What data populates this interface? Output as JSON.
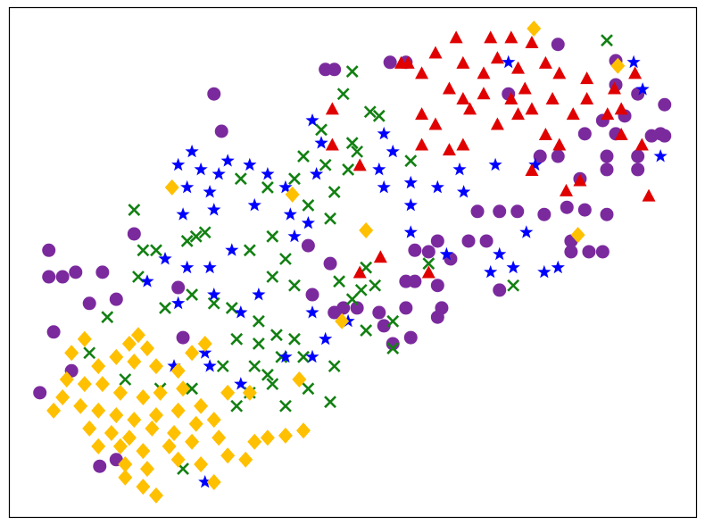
{
  "chart_data": {
    "type": "scatter",
    "title": "",
    "xlabel": "",
    "ylabel": "",
    "xlim": [
      0,
      100
    ],
    "ylim": [
      0,
      100
    ],
    "axes_ticks": false,
    "grid": false,
    "legend": "none",
    "series": [
      {
        "marker": "circle",
        "color": "#7b2a9e",
        "points": [
          [
            29.8,
            83.0
          ],
          [
            30.9,
            75.7
          ],
          [
            46.0,
            87.8
          ],
          [
            47.3,
            87.8
          ],
          [
            55.4,
            89.2
          ],
          [
            57.7,
            89.2
          ],
          [
            79.8,
            92.7
          ],
          [
            88.2,
            89.5
          ],
          [
            72.6,
            83.0
          ],
          [
            88.2,
            84.8
          ],
          [
            91.4,
            83.0
          ],
          [
            95.3,
            80.9
          ],
          [
            89.5,
            78.7
          ],
          [
            86.3,
            77.8
          ],
          [
            83.7,
            75.2
          ],
          [
            88.2,
            75.2
          ],
          [
            93.4,
            74.8
          ],
          [
            95.3,
            74.8
          ],
          [
            77.2,
            70.8
          ],
          [
            79.8,
            70.8
          ],
          [
            86.9,
            70.8
          ],
          [
            91.4,
            70.8
          ],
          [
            86.9,
            68.2
          ],
          [
            91.4,
            68.2
          ],
          [
            83.0,
            66.4
          ],
          [
            94.7,
            75.2
          ],
          [
            68.1,
            60.0
          ],
          [
            71.3,
            60.0
          ],
          [
            73.9,
            60.0
          ],
          [
            77.8,
            59.4
          ],
          [
            81.1,
            60.8
          ],
          [
            83.7,
            60.3
          ],
          [
            86.9,
            59.4
          ],
          [
            81.7,
            54.2
          ],
          [
            81.7,
            52.1
          ],
          [
            84.3,
            52.1
          ],
          [
            86.3,
            52.1
          ],
          [
            66.8,
            54.2
          ],
          [
            69.4,
            54.2
          ],
          [
            62.3,
            54.2
          ],
          [
            59.0,
            52.4
          ],
          [
            64.2,
            50.7
          ],
          [
            61.0,
            52.1
          ],
          [
            57.7,
            46.3
          ],
          [
            59.0,
            46.3
          ],
          [
            62.3,
            45.5
          ],
          [
            57.7,
            41.1
          ],
          [
            62.9,
            41.1
          ],
          [
            62.3,
            39.3
          ],
          [
            71.3,
            44.6
          ],
          [
            53.8,
            40.2
          ],
          [
            54.5,
            37.6
          ],
          [
            55.8,
            34.1
          ],
          [
            58.4,
            35.3
          ],
          [
            48.6,
            41.1
          ],
          [
            47.3,
            40.2
          ],
          [
            50.6,
            41.1
          ],
          [
            44.1,
            43.7
          ],
          [
            43.5,
            53.3
          ],
          [
            46.7,
            49.8
          ],
          [
            5.8,
            52.4
          ],
          [
            5.8,
            47.2
          ],
          [
            7.8,
            47.2
          ],
          [
            9.7,
            48.1
          ],
          [
            13.6,
            48.1
          ],
          [
            15.6,
            42.8
          ],
          [
            6.5,
            36.4
          ],
          [
            9.1,
            28.8
          ],
          [
            4.5,
            24.5
          ],
          [
            18.2,
            55.6
          ],
          [
            24.6,
            45.1
          ],
          [
            25.3,
            35.3
          ],
          [
            13.2,
            10.1
          ],
          [
            15.6,
            11.4
          ],
          [
            11.7,
            42.0
          ]
        ]
      },
      {
        "marker": "x",
        "color": "#128012",
        "points": [
          [
            49.9,
            87.4
          ],
          [
            48.6,
            83.0
          ],
          [
            52.5,
            79.5
          ],
          [
            53.8,
            78.7
          ],
          [
            86.9,
            93.5
          ],
          [
            45.4,
            76.0
          ],
          [
            49.9,
            73.4
          ],
          [
            50.6,
            71.7
          ],
          [
            42.8,
            70.8
          ],
          [
            46.0,
            69.1
          ],
          [
            49.3,
            68.2
          ],
          [
            41.5,
            66.4
          ],
          [
            47.3,
            63.8
          ],
          [
            58.4,
            69.9
          ],
          [
            33.7,
            66.4
          ],
          [
            37.6,
            64.7
          ],
          [
            18.2,
            60.3
          ],
          [
            46.7,
            58.6
          ],
          [
            43.5,
            61.2
          ],
          [
            38.3,
            55.1
          ],
          [
            35.0,
            52.4
          ],
          [
            40.2,
            50.7
          ],
          [
            25.9,
            54.2
          ],
          [
            19.5,
            52.4
          ],
          [
            21.4,
            52.4
          ],
          [
            27.2,
            55.1
          ],
          [
            28.5,
            55.9
          ],
          [
            18.8,
            47.2
          ],
          [
            22.7,
            41.1
          ],
          [
            26.6,
            43.7
          ],
          [
            29.8,
            42.0
          ],
          [
            32.4,
            41.1
          ],
          [
            38.3,
            47.2
          ],
          [
            41.5,
            45.5
          ],
          [
            48.0,
            46.3
          ],
          [
            51.2,
            44.6
          ],
          [
            51.9,
            49.0
          ],
          [
            49.9,
            42.8
          ],
          [
            53.2,
            45.5
          ],
          [
            61.0,
            49.8
          ],
          [
            73.3,
            45.5
          ],
          [
            14.3,
            39.3
          ],
          [
            11.7,
            32.3
          ],
          [
            16.9,
            27.1
          ],
          [
            22.0,
            25.3
          ],
          [
            26.6,
            25.3
          ],
          [
            33.1,
            35.0
          ],
          [
            36.3,
            34.1
          ],
          [
            38.9,
            35.8
          ],
          [
            41.5,
            35.0
          ],
          [
            35.7,
            29.7
          ],
          [
            37.6,
            28.0
          ],
          [
            39.6,
            31.5
          ],
          [
            42.8,
            31.5
          ],
          [
            38.3,
            26.2
          ],
          [
            33.1,
            21.9
          ],
          [
            35.0,
            24.5
          ],
          [
            40.2,
            21.9
          ],
          [
            43.5,
            25.3
          ],
          [
            46.7,
            22.7
          ],
          [
            47.3,
            29.7
          ],
          [
            51.9,
            36.7
          ],
          [
            55.8,
            33.2
          ],
          [
            55.8,
            38.5
          ],
          [
            25.3,
            9.6
          ],
          [
            36.3,
            38.5
          ],
          [
            31.1,
            29.7
          ]
        ]
      },
      {
        "marker": "star",
        "color": "#0000ff",
        "points": [
          [
            26.6,
            71.7
          ],
          [
            24.6,
            69.1
          ],
          [
            27.9,
            68.2
          ],
          [
            30.5,
            67.3
          ],
          [
            25.9,
            64.7
          ],
          [
            29.2,
            63.8
          ],
          [
            31.8,
            69.9
          ],
          [
            35.0,
            69.1
          ],
          [
            25.3,
            59.4
          ],
          [
            29.8,
            60.3
          ],
          [
            35.7,
            61.2
          ],
          [
            37.6,
            67.3
          ],
          [
            40.2,
            64.7
          ],
          [
            44.1,
            77.8
          ],
          [
            45.4,
            73.4
          ],
          [
            44.7,
            67.3
          ],
          [
            40.9,
            59.4
          ],
          [
            43.5,
            57.7
          ],
          [
            41.5,
            55.1
          ],
          [
            32.4,
            52.4
          ],
          [
            22.7,
            50.7
          ],
          [
            25.9,
            49.0
          ],
          [
            29.2,
            49.0
          ],
          [
            20.1,
            46.3
          ],
          [
            29.8,
            43.7
          ],
          [
            36.3,
            43.7
          ],
          [
            24.6,
            42.0
          ],
          [
            33.7,
            40.2
          ],
          [
            54.5,
            75.2
          ],
          [
            55.8,
            71.7
          ],
          [
            53.8,
            68.2
          ],
          [
            54.5,
            64.7
          ],
          [
            58.4,
            65.6
          ],
          [
            62.3,
            64.7
          ],
          [
            65.5,
            68.2
          ],
          [
            66.1,
            63.8
          ],
          [
            70.7,
            69.1
          ],
          [
            76.5,
            69.1
          ],
          [
            72.6,
            89.2
          ],
          [
            90.8,
            89.2
          ],
          [
            92.1,
            83.9
          ],
          [
            94.7,
            70.8
          ],
          [
            58.4,
            55.9
          ],
          [
            63.6,
            51.6
          ],
          [
            71.3,
            51.6
          ],
          [
            70.0,
            48.1
          ],
          [
            73.3,
            49.0
          ],
          [
            77.8,
            48.1
          ],
          [
            79.8,
            49.0
          ],
          [
            75.2,
            55.9
          ],
          [
            58.4,
            61.2
          ],
          [
            44.1,
            40.2
          ],
          [
            46.0,
            35.0
          ],
          [
            44.1,
            31.5
          ],
          [
            40.2,
            31.5
          ],
          [
            33.7,
            26.2
          ],
          [
            28.5,
            32.3
          ],
          [
            29.2,
            29.7
          ],
          [
            24.0,
            29.7
          ],
          [
            28.5,
            7.0
          ],
          [
            49.3,
            38.5
          ]
        ]
      },
      {
        "marker": "triangle",
        "color": "#e00000",
        "points": [
          [
            65,
            94
          ],
          [
            70,
            94
          ],
          [
            73,
            94
          ],
          [
            76,
            93
          ],
          [
            58,
            89
          ],
          [
            62,
            91
          ],
          [
            66,
            89
          ],
          [
            69,
            87
          ],
          [
            71,
            90
          ],
          [
            74,
            88
          ],
          [
            78,
            89
          ],
          [
            80,
            87
          ],
          [
            84,
            86
          ],
          [
            88,
            84
          ],
          [
            91,
            87
          ],
          [
            64,
            84
          ],
          [
            66,
            82
          ],
          [
            69,
            83
          ],
          [
            73,
            82
          ],
          [
            75,
            84
          ],
          [
            76,
            80
          ],
          [
            79,
            82
          ],
          [
            82,
            79
          ],
          [
            84,
            82
          ],
          [
            87,
            79
          ],
          [
            89,
            80
          ],
          [
            60,
            79
          ],
          [
            62,
            77
          ],
          [
            67,
            80
          ],
          [
            71,
            77
          ],
          [
            74,
            79
          ],
          [
            78,
            75
          ],
          [
            80,
            73
          ],
          [
            89,
            75
          ],
          [
            92,
            73
          ],
          [
            47,
            80
          ],
          [
            47,
            73
          ],
          [
            51,
            69
          ],
          [
            60,
            73
          ],
          [
            64,
            72
          ],
          [
            66,
            73
          ],
          [
            76,
            68
          ],
          [
            81,
            64
          ],
          [
            83,
            66
          ],
          [
            93,
            63
          ],
          [
            54,
            51
          ],
          [
            51,
            48
          ],
          [
            61,
            48
          ],
          [
            57,
            89
          ],
          [
            60,
            87
          ]
        ]
      },
      {
        "marker": "diamond",
        "color": "#ffc000",
        "points": [
          [
            76.3,
            95.8
          ],
          [
            88.5,
            88.5
          ],
          [
            23.7,
            64.7
          ],
          [
            41.2,
            63.3
          ],
          [
            51.9,
            56.3
          ],
          [
            82.7,
            55.4
          ],
          [
            48.4,
            38.5
          ],
          [
            42.2,
            27.1
          ],
          [
            18.8,
            35.8
          ],
          [
            17.5,
            34.1
          ],
          [
            20.1,
            33.2
          ],
          [
            11.0,
            35.0
          ],
          [
            9.1,
            32.3
          ],
          [
            13.0,
            29.7
          ],
          [
            15.6,
            31.5
          ],
          [
            18.2,
            30.6
          ],
          [
            21.4,
            29.7
          ],
          [
            24.6,
            28.8
          ],
          [
            26.6,
            32.3
          ],
          [
            28.5,
            34.1
          ],
          [
            8.4,
            27.1
          ],
          [
            11.0,
            26.2
          ],
          [
            13.6,
            26.2
          ],
          [
            16.2,
            24.5
          ],
          [
            19.5,
            23.6
          ],
          [
            22.0,
            24.5
          ],
          [
            25.3,
            25.3
          ],
          [
            7.8,
            23.6
          ],
          [
            6.5,
            21.0
          ],
          [
            10.4,
            21.9
          ],
          [
            13.0,
            21.0
          ],
          [
            15.6,
            20.1
          ],
          [
            18.2,
            19.2
          ],
          [
            21.4,
            20.1
          ],
          [
            24.6,
            21.0
          ],
          [
            27.9,
            21.9
          ],
          [
            11.7,
            17.5
          ],
          [
            14.9,
            16.6
          ],
          [
            17.5,
            15.7
          ],
          [
            20.8,
            17.5
          ],
          [
            24.0,
            16.6
          ],
          [
            27.2,
            18.4
          ],
          [
            29.8,
            19.2
          ],
          [
            13.0,
            14.0
          ],
          [
            16.2,
            14.0
          ],
          [
            19.5,
            13.1
          ],
          [
            23.3,
            14.0
          ],
          [
            26.6,
            14.9
          ],
          [
            30.5,
            15.7
          ],
          [
            31.8,
            12.2
          ],
          [
            34.4,
            11.4
          ],
          [
            16.9,
            10.5
          ],
          [
            20.1,
            9.6
          ],
          [
            24.6,
            11.4
          ],
          [
            27.9,
            10.5
          ],
          [
            16.9,
            7.9
          ],
          [
            19.5,
            6.1
          ],
          [
            21.4,
            4.4
          ],
          [
            29.8,
            7.0
          ],
          [
            35.7,
            14.9
          ],
          [
            37.6,
            15.7
          ],
          [
            40.2,
            16.1
          ],
          [
            42.8,
            17.1
          ],
          [
            31.8,
            24.5
          ],
          [
            35.0,
            24.5
          ]
        ]
      }
    ]
  }
}
